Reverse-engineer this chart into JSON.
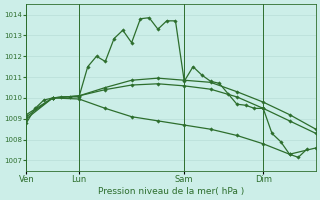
{
  "title": "Pression niveau de la mer( hPa )",
  "bg_color": "#cceee8",
  "grid_color": "#b8ddd8",
  "line_color": "#2d6e2d",
  "ylim": [
    1006.5,
    1014.5
  ],
  "yticks": [
    1007,
    1008,
    1009,
    1010,
    1011,
    1012,
    1013,
    1014
  ],
  "xtick_labels": [
    "Ven",
    "Lun",
    "Sam",
    "Dim"
  ],
  "xtick_positions": [
    0,
    6,
    18,
    27
  ],
  "vline_positions": [
    0,
    6,
    18,
    27
  ],
  "xlim": [
    0,
    33
  ],
  "series1_x": [
    0,
    1,
    2,
    3,
    4,
    5,
    6,
    7,
    8,
    9,
    10,
    11,
    12,
    13,
    14,
    15,
    16,
    17,
    18,
    19,
    20,
    21,
    22,
    23,
    24,
    25,
    26,
    27,
    28,
    29,
    30,
    31,
    32
  ],
  "series1_y": [
    1008.8,
    1009.5,
    1009.9,
    1010.0,
    1010.05,
    1010.05,
    1010.05,
    1011.5,
    1012.0,
    1011.75,
    1012.85,
    1013.25,
    1012.65,
    1013.8,
    1013.85,
    1013.3,
    1013.7,
    1013.7,
    1010.8,
    1011.5,
    1011.1,
    1010.8,
    1010.7,
    1010.2,
    1009.7,
    1009.65,
    1009.5,
    1009.5,
    1008.3,
    1007.9,
    1007.3,
    1007.15,
    1007.55
  ],
  "series2_x": [
    0,
    3,
    6,
    9,
    12,
    15,
    18,
    21,
    24,
    27,
    30,
    33
  ],
  "series2_y": [
    1009.2,
    1010.0,
    1010.1,
    1010.5,
    1010.85,
    1010.95,
    1010.85,
    1010.75,
    1010.3,
    1009.8,
    1009.2,
    1008.5
  ],
  "series3_x": [
    0,
    3,
    6,
    9,
    12,
    15,
    18,
    21,
    24,
    27,
    30,
    33
  ],
  "series3_y": [
    1009.1,
    1010.0,
    1010.1,
    1010.4,
    1010.62,
    1010.68,
    1010.58,
    1010.42,
    1010.05,
    1009.5,
    1008.9,
    1008.3
  ],
  "series4_x": [
    0,
    3,
    6,
    9,
    12,
    15,
    18,
    21,
    24,
    27,
    30,
    33
  ],
  "series4_y": [
    1009.0,
    1010.0,
    1009.95,
    1009.5,
    1009.1,
    1008.9,
    1008.7,
    1008.5,
    1008.2,
    1007.8,
    1007.3,
    1007.6
  ]
}
